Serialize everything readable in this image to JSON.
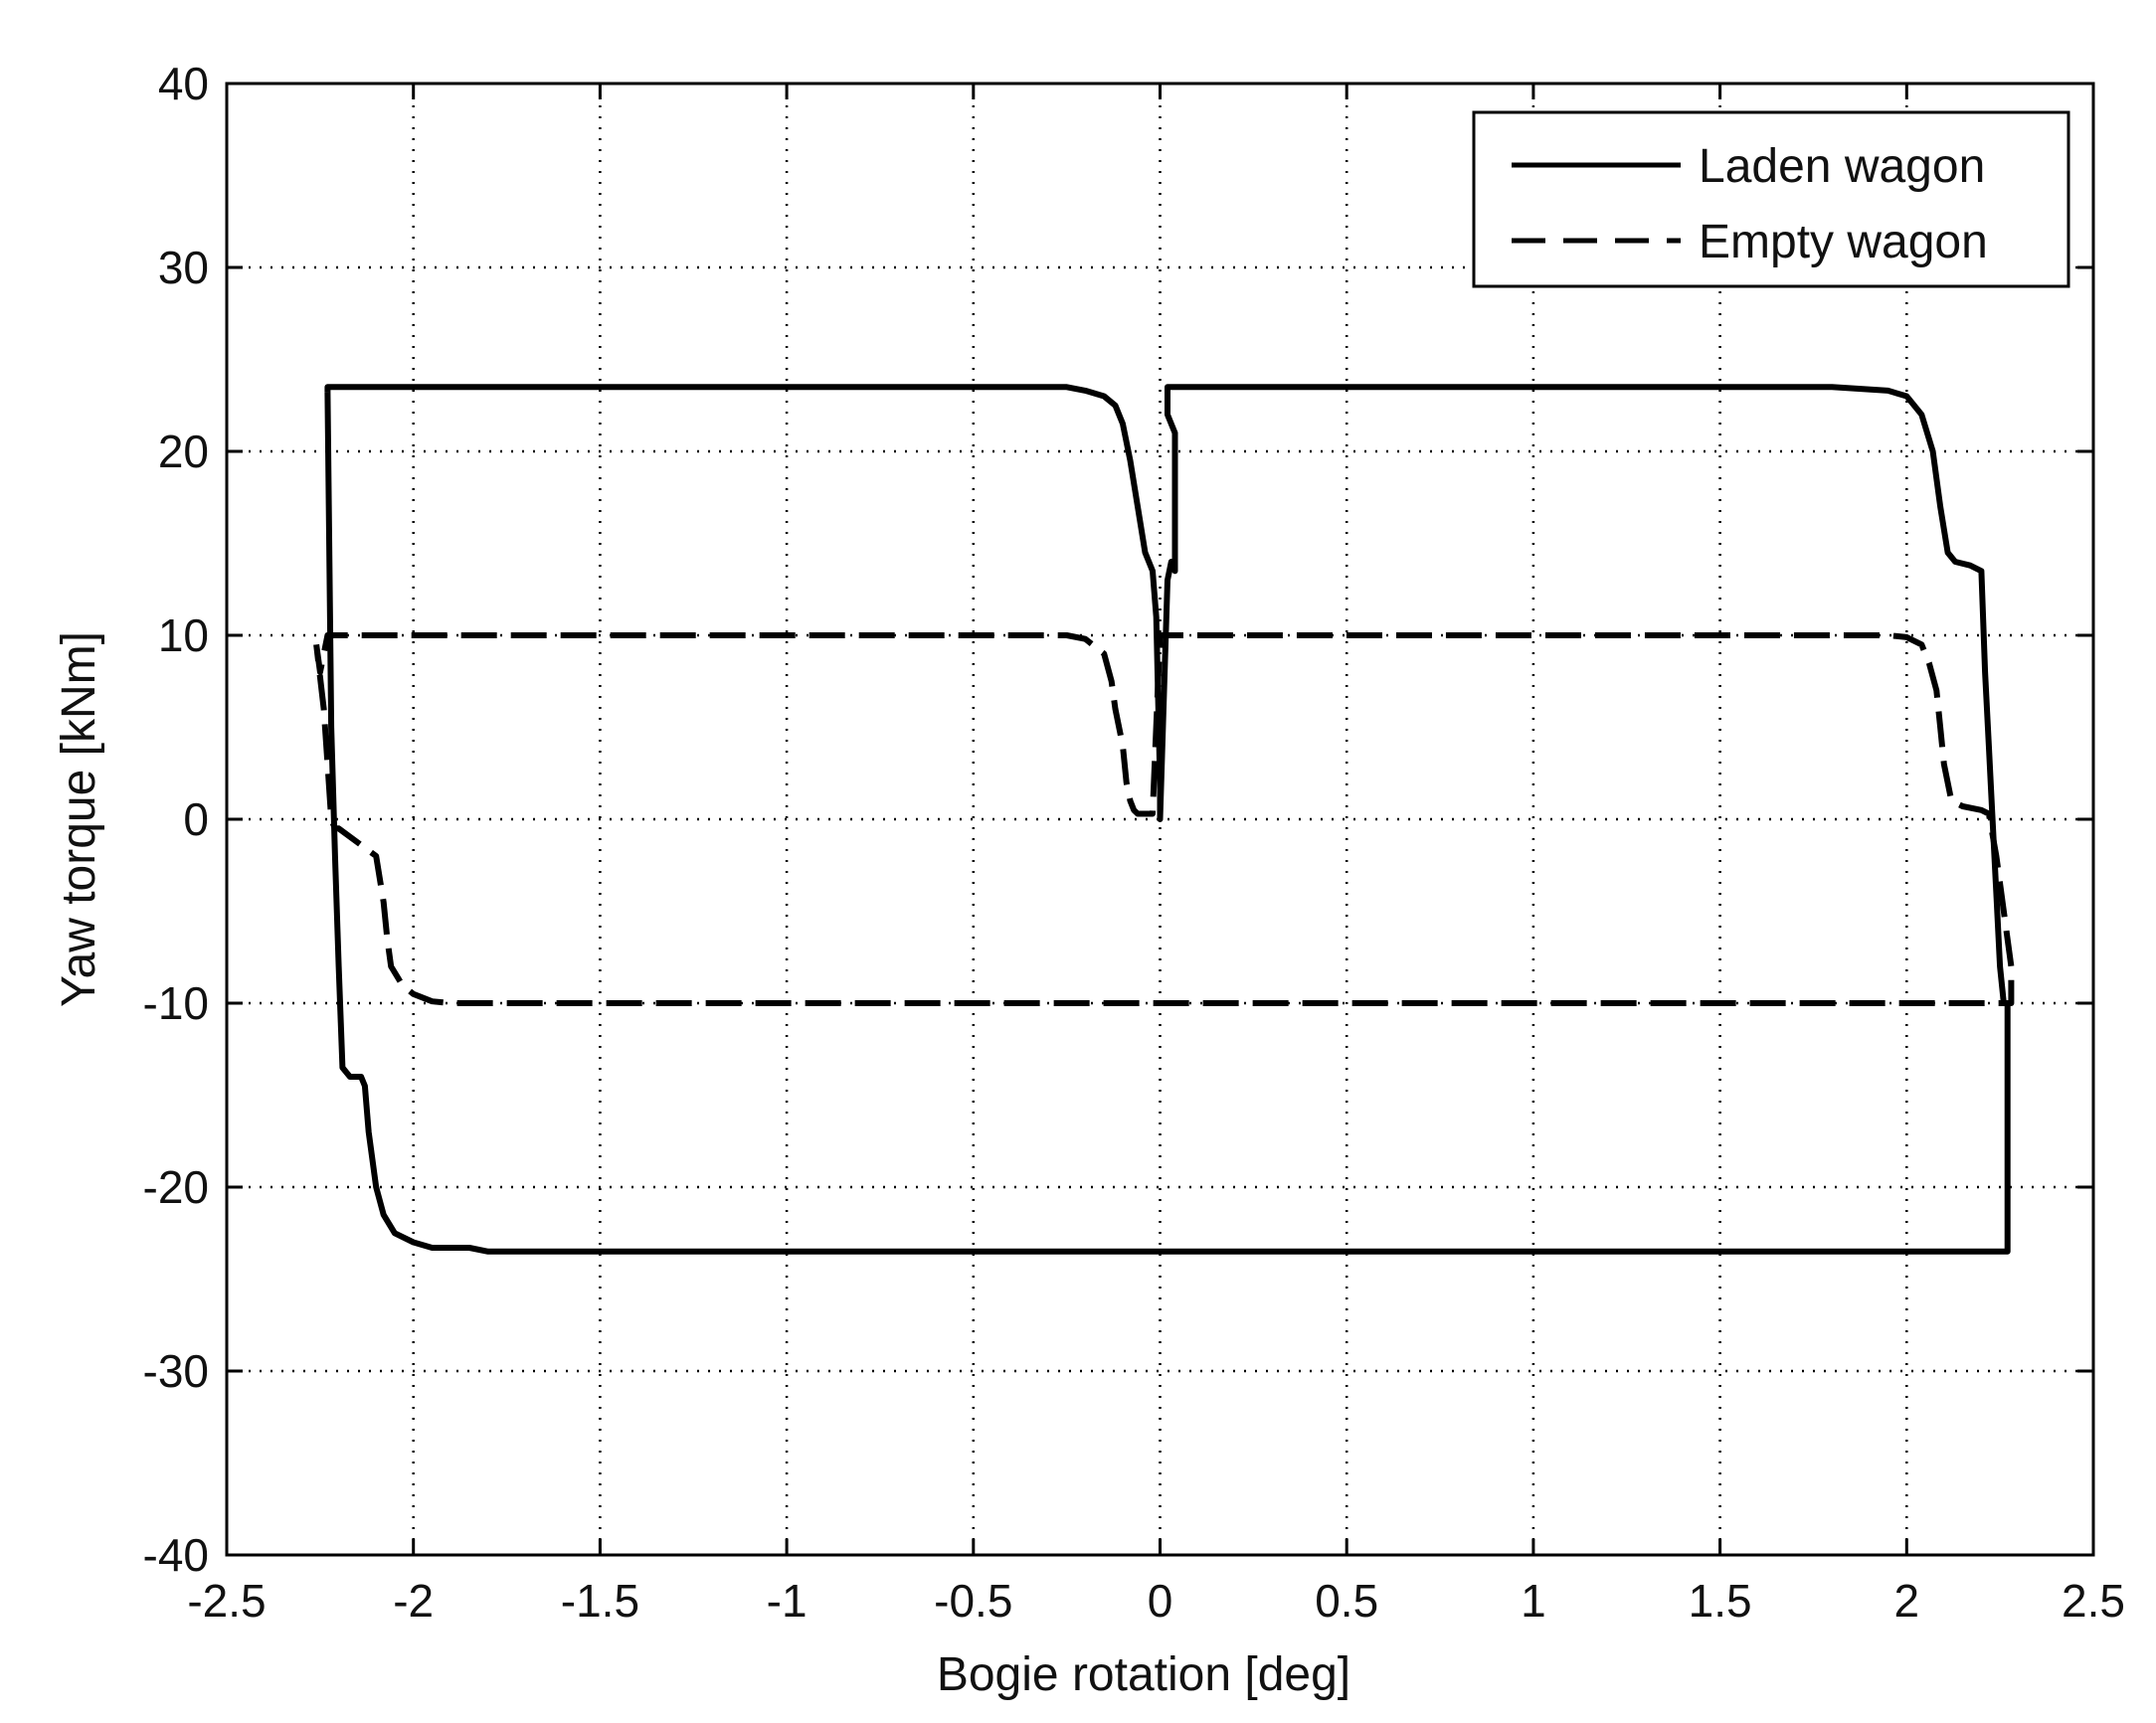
{
  "chart_data": {
    "type": "line",
    "title": "",
    "xlabel": "Bogie rotation [deg]",
    "ylabel": "Yaw torque [kNm]",
    "xlim": [
      -2.5,
      2.5
    ],
    "ylim": [
      -40,
      40
    ],
    "xticks": [
      -2.5,
      -2,
      -1.5,
      -1,
      -0.5,
      0,
      0.5,
      1,
      1.5,
      2,
      2.5
    ],
    "yticks": [
      -40,
      -30,
      -20,
      -10,
      0,
      10,
      20,
      30,
      40
    ],
    "xtick_labels": [
      "-2.5",
      "-2",
      "-1.5",
      "-1",
      "-0.5",
      "0",
      "0.5",
      "1",
      "1.5",
      "2",
      "2.5"
    ],
    "ytick_labels": [
      "-40",
      "-30",
      "-20",
      "-10",
      "0",
      "10",
      "20",
      "30",
      "40"
    ],
    "grid": true,
    "legend_position": "top-right",
    "series": [
      {
        "name": "Laden wagon",
        "color": "#000000",
        "line_style": "solid",
        "x": [
          -2.23,
          -2.23,
          -2.22,
          -2.21,
          -2.2,
          -2.19,
          -2.18,
          -2.16,
          -2.14,
          -2.13,
          -2.12,
          -2.1,
          -2.08,
          -2.05,
          -2.02,
          -1.98,
          -1.9,
          -1.8,
          -1.5,
          -1.0,
          -0.5,
          -0.25,
          -0.2,
          -0.15,
          -0.12,
          -0.1,
          -0.08,
          -0.06,
          -0.04,
          -0.02,
          -0.01,
          0.0,
          0.0,
          0.02,
          0.03,
          0.04,
          0.04,
          0.02,
          0.02,
          0.3,
          0.8,
          1.3,
          1.8,
          1.95,
          2.0,
          2.04,
          2.07,
          2.09,
          2.11,
          2.13,
          2.17,
          2.2,
          2.21,
          2.22,
          2.23,
          2.24,
          2.25,
          2.26,
          2.27,
          2.27,
          2.26,
          2.0,
          1.5,
          1.0,
          0.5,
          0.0,
          -0.5,
          -1.0,
          -1.5,
          -1.8,
          -1.85,
          -1.9,
          -1.95,
          -2.0,
          -2.05,
          -2.08,
          -2.1,
          -2.12,
          -2.13,
          -2.14,
          -2.17,
          -2.19,
          -2.2,
          -2.21,
          -2.22,
          -2.23
        ],
        "y": [
          23.2,
          23.5,
          23.5,
          23.5,
          23.5,
          23.5,
          23.5,
          23.5,
          23.5,
          23.5,
          23.5,
          23.5,
          23.5,
          23.5,
          23.5,
          23.5,
          23.5,
          23.5,
          23.5,
          23.5,
          23.5,
          23.5,
          23.3,
          23.0,
          22.5,
          21.5,
          19.5,
          17.0,
          14.5,
          13.5,
          11.0,
          2.0,
          0.0,
          13.0,
          14.0,
          13.5,
          21.0,
          22.0,
          23.5,
          23.5,
          23.5,
          23.5,
          23.5,
          23.3,
          23.0,
          22.0,
          20.0,
          17.0,
          14.5,
          14.0,
          13.8,
          13.5,
          8.0,
          4.0,
          0.0,
          -4.0,
          -8.0,
          -10.0,
          -10.0,
          -23.5,
          -23.5,
          -23.5,
          -23.5,
          -23.5,
          -23.5,
          -23.5,
          -23.5,
          -23.5,
          -23.5,
          -23.5,
          -23.3,
          -23.3,
          -23.3,
          -23.0,
          -22.5,
          -21.5,
          -20.0,
          -17.0,
          -14.5,
          -14.0,
          -14.0,
          -13.5,
          -8.0,
          -2.0,
          5.0,
          23.2
        ]
      },
      {
        "name": "Empty wagon",
        "color": "#000000",
        "line_style": "dashed",
        "x": [
          -2.26,
          -2.25,
          -2.23,
          -2.2,
          -2.15,
          -2.0,
          -1.5,
          -1.0,
          -0.5,
          -0.25,
          -0.2,
          -0.15,
          -0.13,
          -0.12,
          -0.1,
          -0.09,
          -0.08,
          -0.07,
          -0.06,
          -0.04,
          -0.02,
          0.0,
          0.5,
          1.0,
          1.5,
          1.95,
          2.0,
          2.04,
          2.06,
          2.08,
          2.09,
          2.1,
          2.12,
          2.15,
          2.2,
          2.22,
          2.24,
          2.26,
          2.28,
          2.28,
          2.0,
          1.5,
          1.0,
          0.5,
          0.0,
          -0.5,
          -1.0,
          -1.5,
          -1.9,
          -1.95,
          -2.0,
          -2.03,
          -2.06,
          -2.07,
          -2.08,
          -2.1,
          -2.2,
          -2.21,
          -2.22,
          -2.23,
          -2.24,
          -2.26
        ],
        "y": [
          9.5,
          8.0,
          10.0,
          10.0,
          10.0,
          10.0,
          10.0,
          10.0,
          10.0,
          10.0,
          9.8,
          9.0,
          7.5,
          6.0,
          4.0,
          2.0,
          1.0,
          0.5,
          0.3,
          0.3,
          0.3,
          10.0,
          10.0,
          10.0,
          10.0,
          10.0,
          9.9,
          9.5,
          8.5,
          7.0,
          5.0,
          3.0,
          1.0,
          0.7,
          0.5,
          0.3,
          -2.0,
          -5.0,
          -8.0,
          -10.0,
          -10.0,
          -10.0,
          -10.0,
          -10.0,
          -10.0,
          -10.0,
          -10.0,
          -10.0,
          -10.0,
          -9.9,
          -9.5,
          -9.0,
          -8.0,
          -6.5,
          -4.5,
          -2.0,
          -0.5,
          -0.5,
          0.0,
          3.0,
          6.0,
          9.5
        ]
      }
    ]
  }
}
